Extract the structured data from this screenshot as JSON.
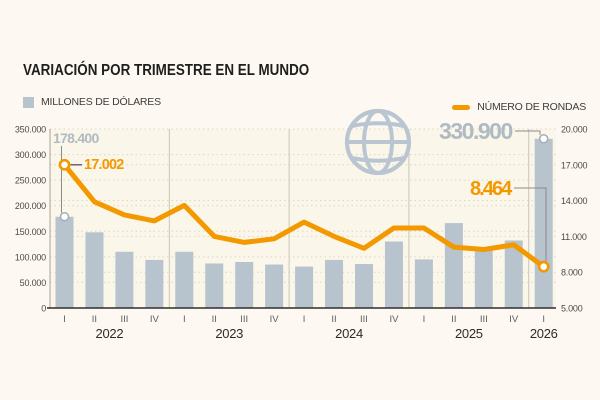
{
  "header": {
    "title": "VARIACIÓN POR TRIMESTRE EN EL MUNDO"
  },
  "legend": {
    "bars_label": "MILLONES DE DÓLARES",
    "line_label": "NÚMERO DE RONDAS"
  },
  "colors": {
    "bar": "#b7c3cd",
    "line": "#f49800",
    "bar_annotation": "#b0bac2",
    "globe": "#b9c6d2",
    "background": "#fdf9f2"
  },
  "chart_data": {
    "type": "bar",
    "subtype": "bar+line dual-axis combo",
    "title": "VARIACIÓN POR TRIMESTRE EN EL MUNDO",
    "categories": [
      "2022 I",
      "2022 II",
      "2022 III",
      "2022 IV",
      "2023 I",
      "2023 II",
      "2023 III",
      "2023 IV",
      "2024 I",
      "2024 II",
      "2024 III",
      "2024 IV",
      "2025 I",
      "2025 II",
      "2025 III",
      "2025 IV",
      "2026 I"
    ],
    "groups": [
      {
        "year": "2022",
        "quarters": [
          "I",
          "II",
          "III",
          "IV"
        ]
      },
      {
        "year": "2023",
        "quarters": [
          "I",
          "II",
          "III",
          "IV"
        ]
      },
      {
        "year": "2024",
        "quarters": [
          "I",
          "II",
          "III",
          "IV"
        ]
      },
      {
        "year": "2025",
        "quarters": [
          "I",
          "II",
          "III",
          "IV"
        ]
      },
      {
        "year": "2026",
        "quarters": [
          "I"
        ]
      }
    ],
    "series": [
      {
        "name": "MILLONES DE DÓLARES",
        "type": "bar",
        "axis": "left",
        "values": [
          178400,
          148000,
          110000,
          94000,
          110000,
          87000,
          90000,
          85000,
          81000,
          94000,
          86000,
          130000,
          95000,
          166000,
          113000,
          132000,
          330900
        ]
      },
      {
        "name": "NÚMERO DE RONDAS",
        "type": "line",
        "axis": "right",
        "values": [
          17002,
          13900,
          12800,
          12300,
          13600,
          11000,
          10500,
          10800,
          12200,
          11000,
          10000,
          11700,
          11700,
          10100,
          9900,
          10300,
          8464
        ]
      }
    ],
    "left_axis": {
      "min": 0,
      "max": 350000,
      "tick_values": [
        350000,
        300000,
        250000,
        200000,
        150000,
        100000,
        50000,
        0
      ],
      "tick_labels": [
        "350.000",
        "300.000",
        "250.000",
        "200.000",
        "150.000",
        "100.000",
        "50.000",
        "0"
      ]
    },
    "right_axis": {
      "min": 5000,
      "max": 20000,
      "tick_values": [
        20000,
        17000,
        14000,
        11000,
        8000,
        5000
      ],
      "tick_labels": [
        "20.000",
        "17.000",
        "14.000",
        "11.000",
        "8.000",
        "5.000"
      ]
    },
    "annotations": {
      "first_bar": "178.400",
      "first_line": "17.002",
      "last_bar": "330.900",
      "last_line": "8.464"
    },
    "grid": "dotted horizontal gridlines for both scales; solid vertical separators between years",
    "legend_position": "top"
  }
}
